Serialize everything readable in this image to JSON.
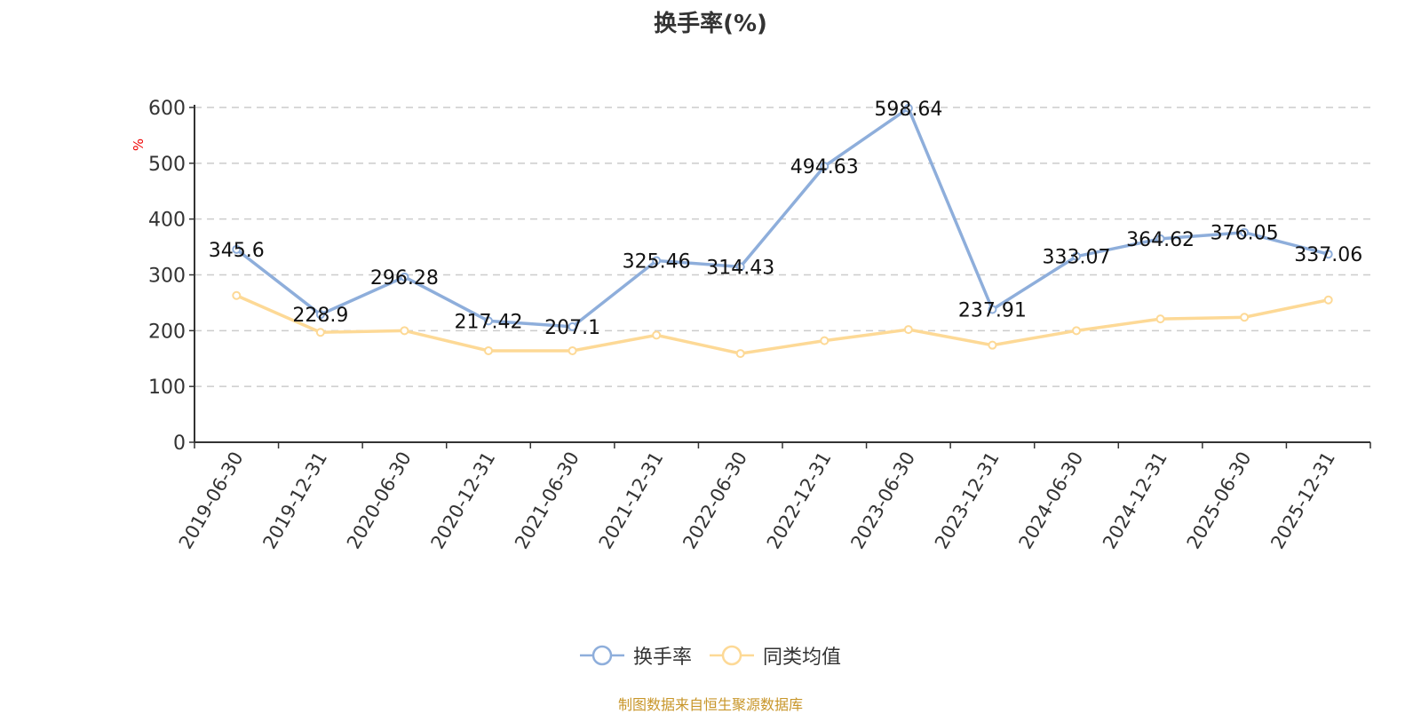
{
  "chart_data": {
    "type": "line",
    "title": "换手率(%)",
    "ylabel": "%",
    "ylim": [
      0,
      600
    ],
    "yticks": [
      0,
      100,
      200,
      300,
      400,
      500,
      600
    ],
    "grid": true,
    "legend_position": "bottom",
    "categories": [
      "2019-06-30",
      "2019-12-31",
      "2020-06-30",
      "2020-12-31",
      "2021-06-30",
      "2021-12-31",
      "2022-06-30",
      "2022-12-31",
      "2023-06-30",
      "2023-12-31",
      "2024-06-30",
      "2024-12-31",
      "2025-06-30",
      "2025-12-31"
    ],
    "series": [
      {
        "name": "换手率",
        "color": "#8eaedb",
        "labels": true,
        "values": [
          345.6,
          228.9,
          296.28,
          217.42,
          207.1,
          325.46,
          314.43,
          494.63,
          598.64,
          237.91,
          333.07,
          364.62,
          376.05,
          337.06
        ]
      },
      {
        "name": "同类均值",
        "color": "#fdd996",
        "labels": false,
        "values": [
          263,
          197,
          200,
          164,
          164,
          192,
          159,
          182,
          202,
          174,
          200,
          221,
          224,
          255
        ]
      }
    ]
  },
  "footer": "制图数据来自恒生聚源数据库"
}
